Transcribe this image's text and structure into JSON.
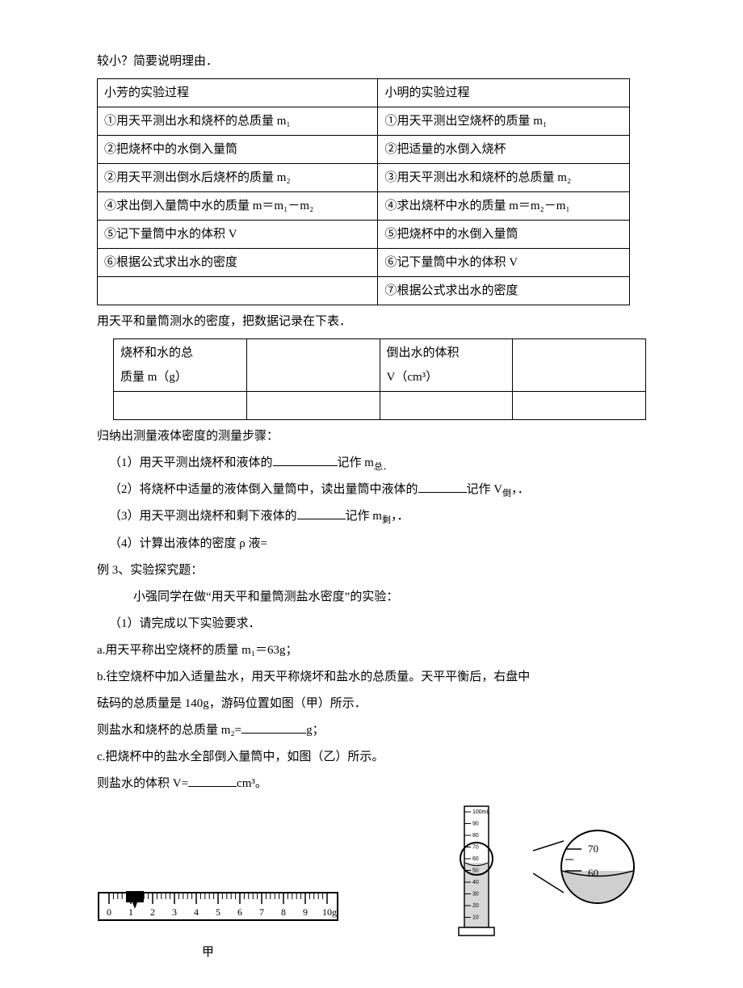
{
  "intro_line": "较小？简要说明理由．",
  "table1": {
    "h1": "小芳的实验过程",
    "h2": "小明的实验过程",
    "rows": [
      [
        "①用天平测出水和烧杯的总质量 m₁",
        "①用天平测出空烧杯的质量 m₁"
      ],
      [
        "②把烧杯中的水倒入量筒",
        "②把适量的水倒入烧杯"
      ],
      [
        "②用天平测出倒水后烧杯的质量 m₂",
        "③用天平测出水和烧杯的总质量 m₂"
      ],
      [
        "④求出倒入量筒中水的质量 m＝m₁－m₂",
        "④求出烧杯中水的质量 m＝m₂－m₁"
      ],
      [
        "⑤记下量筒中水的体积 V",
        "⑤把烧杯中的水倒入量筒"
      ],
      [
        "⑥根据公式求出水的密度",
        "⑥记下量筒中水的体积 V"
      ],
      [
        "",
        "⑦根据公式求出水的密度"
      ]
    ]
  },
  "after_table1": "用天平和量筒测水的密度，把数据记录在下表．",
  "table2": {
    "c1a": "烧杯和水的总",
    "c1b": "质量 m（g）",
    "c3a": "倒出水的体积",
    "c3b": "V（cm³）"
  },
  "steps_title": "归纳出测量液体密度的测量步骤：",
  "step1_a": "（1）用天平测出烧杯和液体的",
  "step1_b": "记作 m",
  "step1_sub": "总．",
  "step2_a": "（2）将烧杯中适量的液体倒入量筒中，读出量筒中液体的",
  "step2_b": "记作 V",
  "step2_sub": "倒",
  "step2_c": "，．",
  "step3_a": "（3）用天平测出烧杯和剩下液体的",
  "step3_b": "记作 m",
  "step3_sub": "剩",
  "step3_c": "，．",
  "step4": "（4）计算出液体的密度 ρ 液=",
  "ex3_title": "例 3、实验探究题：",
  "ex3_p": "小强同学在做“用天平和量筒测盐水密度”的实验：",
  "ex3_1": "（1）请完成以下实验要求．",
  "ex3_a": "a.用天平称出空烧杯的质量 m₁＝63g；",
  "ex3_b1": "b.往空烧杯中加入适量盐水，用天平称烧坏和盐水的总质量。天平平衡后，右盘中",
  "ex3_b2": "砝码的总质量是 140g，游码位置如图（甲）所示．",
  "ex3_b3a": "则盐水和烧杯的总质量 m₂=",
  "ex3_b3b": "g；",
  "ex3_c1": "c.把烧杯中的盐水全部倒入量筒中，如图（乙）所示。",
  "ex3_c2a": "则盐水的体积 V=",
  "ex3_c2b": "cm³。",
  "jia": "甲",
  "ruler_nums": [
    "0",
    "1",
    "2",
    "3",
    "4",
    "5",
    "6",
    "7",
    "8",
    "9",
    "10g"
  ],
  "cyl_labels": [
    "100mL",
    "90",
    "80",
    "70",
    "60",
    "50",
    "40",
    "30",
    "20",
    "10"
  ],
  "zoom_labels": [
    "70",
    "60"
  ]
}
